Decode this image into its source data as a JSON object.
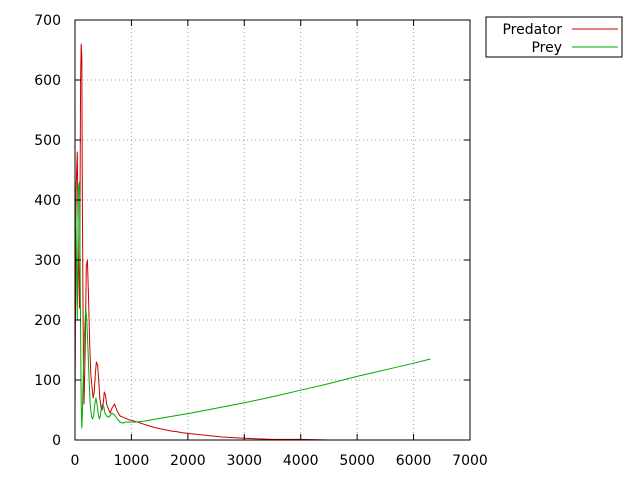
{
  "chart_data": {
    "type": "line",
    "title": "",
    "xlabel": "",
    "ylabel": "",
    "xlim": [
      0,
      7000
    ],
    "ylim": [
      0,
      700
    ],
    "xticks": [
      0,
      1000,
      2000,
      3000,
      4000,
      5000,
      6000,
      7000
    ],
    "yticks": [
      0,
      100,
      200,
      300,
      400,
      500,
      600,
      700
    ],
    "xtick_labels": [
      "0",
      "1000",
      "2000",
      "3000",
      "4000",
      "5000",
      "6000",
      "7000"
    ],
    "ytick_labels": [
      "0",
      "100",
      "200",
      "300",
      "400",
      "500",
      "600",
      "700"
    ],
    "grid": true,
    "legend_position": "outside-top-right",
    "series": [
      {
        "name": "Predator",
        "color": "#cc0000",
        "x": [
          0,
          20,
          40,
          60,
          80,
          100,
          110,
          120,
          130,
          140,
          150,
          160,
          180,
          200,
          220,
          240,
          260,
          280,
          300,
          320,
          340,
          360,
          380,
          400,
          420,
          440,
          460,
          480,
          500,
          520,
          540,
          560,
          580,
          600,
          620,
          650,
          700,
          750,
          800,
          850,
          900,
          950,
          1000,
          1100,
          1200,
          1300,
          1400,
          1500,
          1600,
          1700,
          1800,
          1900,
          2000,
          2200,
          2400,
          2600,
          2800,
          3000,
          3200,
          3500,
          4000,
          4500,
          5000,
          5500,
          5700
        ],
        "y": [
          50,
          420,
          480,
          300,
          220,
          600,
          660,
          640,
          420,
          250,
          110,
          60,
          150,
          290,
          300,
          240,
          160,
          110,
          90,
          70,
          80,
          110,
          130,
          125,
          100,
          70,
          55,
          50,
          60,
          80,
          75,
          60,
          55,
          50,
          45,
          52,
          60,
          48,
          40,
          38,
          36,
          34,
          33,
          30,
          27,
          24,
          21,
          19,
          17,
          15,
          14,
          12,
          11,
          9,
          7,
          5,
          4,
          3,
          2,
          1,
          1,
          0,
          0,
          0,
          0
        ]
      },
      {
        "name": "Prey",
        "color": "#00aa00",
        "x": [
          0,
          20,
          40,
          60,
          80,
          100,
          110,
          120,
          130,
          140,
          150,
          170,
          190,
          210,
          230,
          250,
          270,
          290,
          310,
          330,
          350,
          370,
          390,
          410,
          430,
          450,
          470,
          490,
          510,
          530,
          560,
          600,
          650,
          700,
          750,
          800,
          850,
          900,
          1000,
          1100,
          1200,
          1500,
          2000,
          2500,
          3000,
          3500,
          4000,
          4500,
          5000,
          5500,
          6000,
          6300
        ],
        "y": [
          430,
          350,
          200,
          420,
          430,
          180,
          60,
          20,
          40,
          80,
          120,
          180,
          220,
          200,
          150,
          100,
          60,
          40,
          35,
          40,
          60,
          70,
          60,
          45,
          35,
          40,
          55,
          60,
          55,
          45,
          40,
          38,
          45,
          42,
          35,
          30,
          28,
          30,
          30,
          30,
          31,
          36,
          44,
          53,
          62,
          72,
          83,
          94,
          106,
          117,
          128,
          135
        ]
      }
    ]
  }
}
